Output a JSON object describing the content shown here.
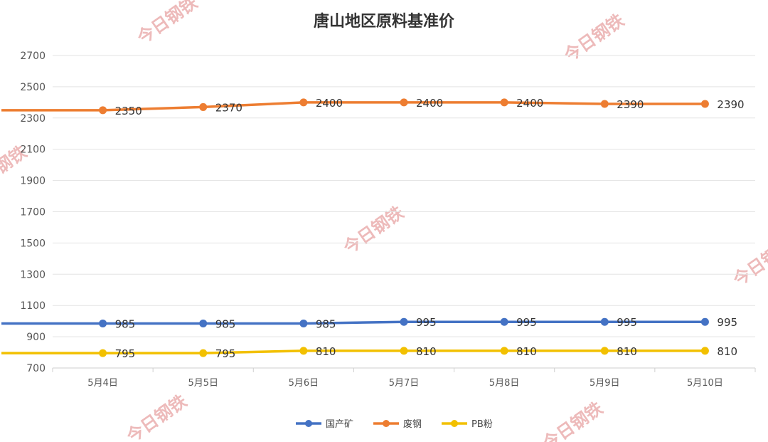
{
  "chart_data": {
    "type": "line",
    "title": "唐山地区原料基准价",
    "categories": [
      "5月4日",
      "5月5日",
      "5月6日",
      "5月7日",
      "5月8日",
      "5月9日",
      "5月10日"
    ],
    "ylim": [
      700,
      2700
    ],
    "yticks": [
      700,
      900,
      1100,
      1300,
      1500,
      1700,
      1900,
      2100,
      2300,
      2500,
      2700
    ],
    "grid": true,
    "legend_position": "bottom",
    "series": [
      {
        "name": "国产矿",
        "color": "#4472c4",
        "values": [
          985,
          985,
          985,
          995,
          995,
          995,
          995
        ]
      },
      {
        "name": "废钢",
        "color": "#ed7d31",
        "values": [
          2350,
          2370,
          2400,
          2400,
          2400,
          2390,
          2390
        ]
      },
      {
        "name": "PB粉",
        "color": "#f2c000",
        "values": [
          795,
          795,
          810,
          810,
          810,
          810,
          810
        ]
      }
    ]
  },
  "watermark": "今日钢铁"
}
